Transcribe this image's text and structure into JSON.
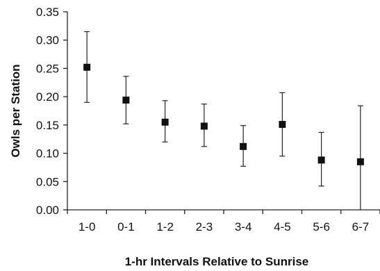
{
  "chart_data": {
    "type": "scatter",
    "title": "",
    "xlabel": "1-hr Intervals Relative to Sunrise",
    "ylabel": "Owls per Station",
    "ylim": [
      0,
      0.35
    ],
    "yticks": [
      "0.00",
      "0.05",
      "0.10",
      "0.15",
      "0.20",
      "0.25",
      "0.30",
      "0.35"
    ],
    "grid": false,
    "legend": "none",
    "categories": [
      "1-0",
      "0-1",
      "1-2",
      "2-3",
      "3-4",
      "4-5",
      "5-6",
      "6-7"
    ],
    "series": [
      {
        "marker": "square",
        "color": "#111111",
        "values": [
          0.252,
          0.194,
          0.155,
          0.148,
          0.112,
          0.151,
          0.088,
          0.085
        ],
        "error_low": [
          0.19,
          0.152,
          0.12,
          0.112,
          0.077,
          0.095,
          0.042,
          0.0
        ],
        "error_high": [
          0.315,
          0.236,
          0.193,
          0.187,
          0.149,
          0.207,
          0.137,
          0.184
        ]
      }
    ]
  }
}
